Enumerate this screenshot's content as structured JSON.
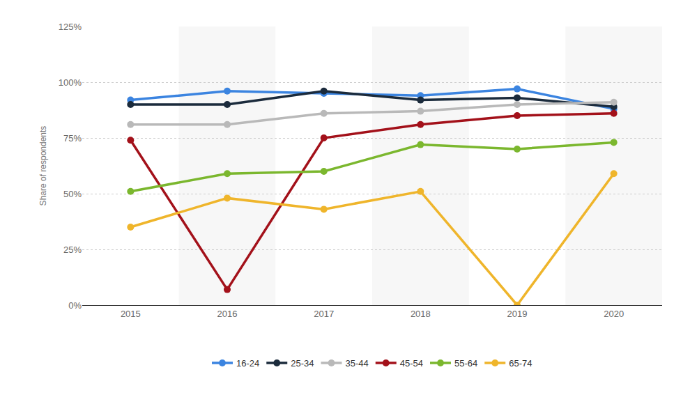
{
  "chart_data": {
    "type": "line",
    "y_label": "Share of respondents",
    "categories": [
      "2015",
      "2016",
      "2017",
      "2018",
      "2019",
      "2020"
    ],
    "series": [
      {
        "name": "16-24",
        "color": "#3b84e0",
        "values": [
          92,
          96,
          95,
          94,
          97,
          88
        ]
      },
      {
        "name": "25-34",
        "color": "#1b2b3c",
        "values": [
          90,
          90,
          96,
          92,
          93,
          89
        ]
      },
      {
        "name": "35-44",
        "color": "#b9b9b9",
        "values": [
          81,
          81,
          86,
          87,
          90,
          91
        ]
      },
      {
        "name": "45-54",
        "color": "#a3111a",
        "values": [
          74,
          7,
          75,
          81,
          85,
          86
        ]
      },
      {
        "name": "55-64",
        "color": "#7bb72e",
        "values": [
          51,
          59,
          60,
          72,
          70,
          73
        ]
      },
      {
        "name": "65-74",
        "color": "#efb52b",
        "values": [
          35,
          48,
          43,
          51,
          0,
          59
        ]
      }
    ],
    "ylim": [
      0,
      125
    ],
    "yticks": [
      {
        "value": 0,
        "label": "0%"
      },
      {
        "value": 25,
        "label": "25%"
      },
      {
        "value": 50,
        "label": "50%"
      },
      {
        "value": 75,
        "label": "75%"
      },
      {
        "value": 100,
        "label": "100%"
      },
      {
        "value": 125,
        "label": "125%"
      }
    ],
    "grid": true,
    "legend": "bottom",
    "marker": "circle",
    "line_style": "solid"
  }
}
